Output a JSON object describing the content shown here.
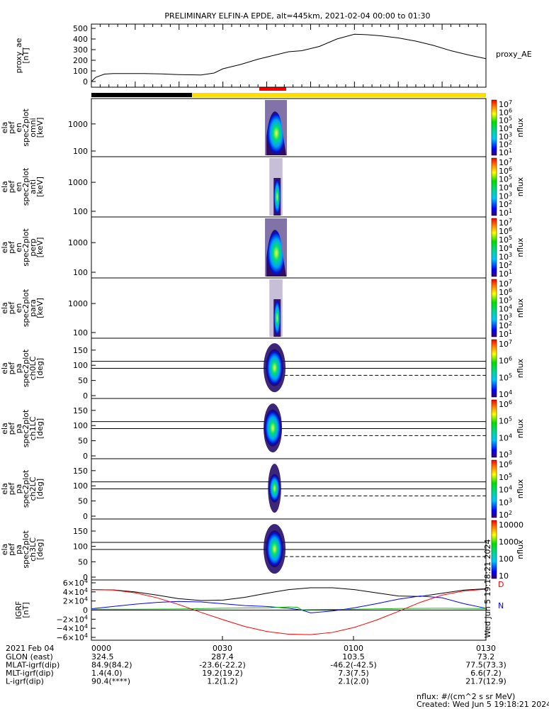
{
  "title": "PRELIMINARY ELFIN-A EPDE, alt=445km, 2021-02-04 00:00 to 01:30",
  "chart_data": [
    {
      "type": "line",
      "panel": "proxy_ae",
      "ylabel": "proxy_ae",
      "yunit": "[nT]",
      "right_label": "proxy_AE",
      "ylim": [
        0,
        500
      ],
      "yticks": [
        "500",
        "400",
        "300",
        "200",
        "100",
        "0"
      ],
      "series": [
        {
          "x": [
            0,
            1,
            3,
            5,
            8,
            12,
            16,
            20,
            25,
            28,
            30,
            34,
            38,
            42,
            45,
            48,
            52,
            56,
            60,
            63,
            66,
            70,
            74,
            78,
            82,
            86,
            90
          ],
          "y": [
            0,
            40,
            70,
            75,
            75,
            75,
            72,
            65,
            62,
            80,
            120,
            160,
            210,
            250,
            280,
            290,
            330,
            400,
            445,
            440,
            430,
            410,
            380,
            340,
            290,
            250,
            215
          ]
        }
      ]
    },
    {
      "type": "heatmap",
      "panel": "spec2plot omni",
      "ylabel": "ela pef en spec2plot omni",
      "yunit": "[keV]",
      "yscale": "log",
      "yticks": [
        "1000",
        "100"
      ],
      "colorbar_label": "nflux",
      "colorbar_ticks": [
        "10^7",
        "10^6",
        "10^5",
        "10^4",
        "10^3",
        "10^2",
        "10^1"
      ],
      "x_range": [
        39.6,
        44.6
      ],
      "peak_energy": 1000
    },
    {
      "type": "heatmap",
      "panel": "spec2plot anti",
      "ylabel": "ela pef en spec2plot anti",
      "yunit": "[keV]",
      "yscale": "log",
      "yticks": [
        "1000",
        "100"
      ],
      "colorbar_label": "nflux",
      "colorbar_ticks": [
        "10^7",
        "10^6",
        "10^5",
        "10^4",
        "10^3",
        "10^2",
        "10^1"
      ],
      "x_range": [
        40.6,
        43.6
      ]
    },
    {
      "type": "heatmap",
      "panel": "spec2plot perp",
      "ylabel": "ela pef en spec2plot perp",
      "yunit": "[keV]",
      "yscale": "log",
      "yticks": [
        "1000",
        "100"
      ],
      "colorbar_label": "nflux",
      "colorbar_ticks": [
        "10^7",
        "10^6",
        "10^5",
        "10^4",
        "10^3",
        "10^2",
        "10^1"
      ],
      "x_range": [
        39.6,
        44.6
      ]
    },
    {
      "type": "heatmap",
      "panel": "spec2plot para",
      "ylabel": "ela pef en spec2plot para",
      "yunit": "[keV]",
      "yscale": "log",
      "yticks": [
        "1000",
        "100"
      ],
      "colorbar_label": "nflux",
      "colorbar_ticks": [
        "10^7",
        "10^6",
        "10^5",
        "10^4",
        "10^3",
        "10^2",
        "10^1"
      ],
      "x_range": [
        40.6,
        43.6
      ]
    },
    {
      "type": "heatmap",
      "panel": "spec2plot ch0LC",
      "ylabel": "ela pef pa spec2plot ch0LC",
      "yunit": "[deg]",
      "ylim": [
        0,
        180
      ],
      "yticks": [
        "150",
        "100",
        "50",
        "0"
      ],
      "colorbar_label": "nflux",
      "colorbar_ticks": [
        "10^7",
        "10^6",
        "10^5",
        "10^4"
      ],
      "ref_lines_deg": [
        90,
        113
      ],
      "dashed_line_deg": 67,
      "x_range": [
        39.6,
        44.6
      ]
    },
    {
      "type": "heatmap",
      "panel": "spec2plot ch1LC",
      "ylabel": "ela pef pa spec2plot ch1LC",
      "yunit": "[deg]",
      "ylim": [
        0,
        180
      ],
      "yticks": [
        "150",
        "100",
        "50",
        "0"
      ],
      "colorbar_label": "nflux",
      "colorbar_ticks": [
        "10^6",
        "10^5",
        "10^4",
        "10^3"
      ],
      "ref_lines_deg": [
        90,
        113
      ],
      "dashed_line_deg": 67,
      "x_range": [
        39.6,
        43.8
      ]
    },
    {
      "type": "heatmap",
      "panel": "spec2plot ch2LC",
      "ylabel": "ela pef pa spec2plot ch2LC",
      "yunit": "[deg]",
      "ylim": [
        0,
        180
      ],
      "yticks": [
        "150",
        "100",
        "50",
        "0"
      ],
      "colorbar_label": "nflux",
      "colorbar_ticks": [
        "10^6",
        "10^5",
        "10^4",
        "10^3",
        "10^2"
      ],
      "ref_lines_deg": [
        90,
        113
      ],
      "dashed_line_deg": 67,
      "x_range": [
        40.6,
        43.6
      ]
    },
    {
      "type": "heatmap",
      "panel": "spec2plot ch3LC",
      "ylabel": "ela pef pa spec2plot ch3LC",
      "yunit": "[deg]",
      "ylim": [
        0,
        180
      ],
      "yticks": [
        "150",
        "100",
        "50",
        "0"
      ],
      "colorbar_label": "nflux",
      "colorbar_ticks": [
        "10000",
        "1000",
        "100",
        "10"
      ],
      "ref_lines_deg": [
        90,
        113
      ],
      "dashed_line_deg": 67,
      "x_range": [
        39.6,
        44.6
      ]
    },
    {
      "type": "line",
      "panel": "IGRF",
      "ylabel": "IGRF",
      "yunit": "[nT]",
      "ylim": [
        -60000,
        60000
      ],
      "yticks": [
        "6×10^4",
        "4×10^4",
        "2×10^4",
        "0",
        "−2×10^4",
        "−4×10^4",
        "−6×10^4"
      ],
      "legend": [
        "D",
        "N"
      ],
      "series": [
        {
          "color": "#000000",
          "x": [
            0,
            5,
            10,
            15,
            20,
            25,
            30,
            35,
            40,
            45,
            50,
            55,
            60,
            65,
            70,
            75,
            80,
            85,
            90
          ],
          "y": [
            45000,
            44500,
            40000,
            33000,
            25000,
            21000,
            22000,
            28000,
            37000,
            45000,
            49000,
            49000,
            45000,
            38000,
            31000,
            30000,
            37000,
            44000,
            47000
          ]
        },
        {
          "color": "#0000ff",
          "x": [
            0,
            5,
            10,
            15,
            20,
            25,
            30,
            35,
            40,
            45,
            48,
            50,
            55,
            60,
            65,
            70,
            75,
            80,
            85,
            90
          ],
          "y": [
            3000,
            8000,
            13000,
            17000,
            19000,
            18000,
            14000,
            10000,
            8000,
            4000,
            0,
            -6000,
            -2000,
            5000,
            14000,
            24000,
            31000,
            27000,
            14000,
            4000
          ]
        },
        {
          "color": "#00c000",
          "x": [
            0,
            10,
            20,
            30,
            40,
            45,
            47,
            48,
            50,
            60,
            70,
            80,
            90
          ],
          "y": [
            2000,
            2000,
            2500,
            4000,
            5000,
            7000,
            6000,
            500,
            1000,
            2000,
            3500,
            4000,
            3500
          ]
        },
        {
          "color": "#ff0000",
          "x": [
            0,
            5,
            10,
            15,
            20,
            25,
            30,
            35,
            40,
            45,
            50,
            55,
            60,
            65,
            70,
            75,
            80,
            85,
            90
          ],
          "y": [
            45000,
            44000,
            38000,
            27000,
            12000,
            -5000,
            -21000,
            -36000,
            -47000,
            -53000,
            -54000,
            -49000,
            -38000,
            -22000,
            -3000,
            17000,
            33000,
            42000,
            46000
          ]
        }
      ]
    }
  ],
  "xaxis": {
    "ticks": [
      "0000",
      "0030",
      "0100",
      "0130"
    ],
    "date": "2021 Feb 04",
    "rows": [
      {
        "label": "GLON (east)",
        "values": [
          "324.5",
          "287.4",
          "103.5",
          "73.2"
        ]
      },
      {
        "label": "MLAT-igrf(dip)",
        "values": [
          "84.9(84.2)",
          "-23.6(-22.2)",
          "-46.2(-42.5)",
          "77.5(73.3)"
        ]
      },
      {
        "label": "MLT-igrf(dip)",
        "values": [
          "1.4(4.0)",
          "19.2(19.2)",
          "7.3(7.5)",
          "6.6(7.2)"
        ]
      },
      {
        "label": "L-igrf(dip)",
        "values": [
          "90.4(****)",
          "1.2(1.2)",
          "2.1(2.0)",
          "21.7(12.9)"
        ]
      }
    ]
  },
  "footer": {
    "units": "nflux: #/(cm^2 s sr MeV)",
    "created": "Created: Wed Jun  5 19:18:21 2024",
    "side_stamp": "Wed Jun  5 19:18:21 2024"
  },
  "colors": {
    "bar_black": "#000000",
    "bar_yellow": "#ffdd00",
    "bar_red": "#ff0000"
  }
}
